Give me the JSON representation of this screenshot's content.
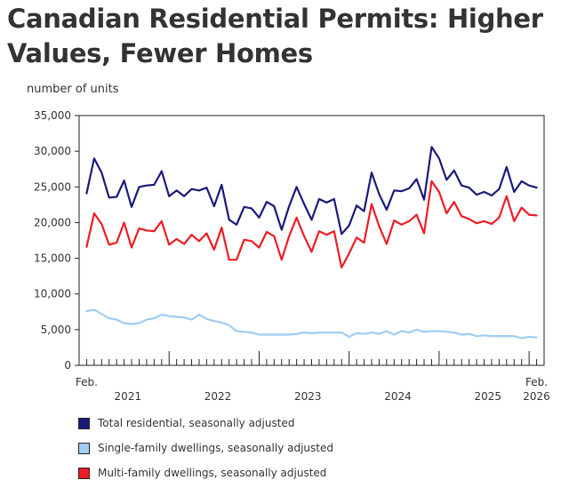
{
  "title": "Canadian Residential Permits: Higher Values, Fewer Homes",
  "chart_data": {
    "type": "line",
    "title": "Canadian Residential Permits: Higher Values, Fewer Homes",
    "ylabel": "number of units",
    "xlabel": "",
    "ylim": [
      0,
      35000
    ],
    "yticks": [
      0,
      5000,
      10000,
      15000,
      20000,
      25000,
      30000,
      35000
    ],
    "ytick_labels": [
      "0",
      "5,000",
      "10,000",
      "15,000",
      "20,000",
      "25,000",
      "30,000",
      "35,000"
    ],
    "x_start_label": "Feb.",
    "x_end_label": "Feb.",
    "year_labels": [
      "2021",
      "2022",
      "2023",
      "2024",
      "2025",
      "2026"
    ],
    "x_start": "2021-02",
    "x_end": "2026-02",
    "series": [
      {
        "name": "Total residential, seasonally adjusted",
        "color": "#1a1a7a",
        "values": [
          24100,
          29000,
          27000,
          23500,
          23600,
          25900,
          22200,
          25000,
          25200,
          25300,
          27200,
          23700,
          24500,
          23700,
          24700,
          24500,
          24900,
          22300,
          25300,
          20400,
          19700,
          22200,
          22000,
          20700,
          22900,
          22300,
          19000,
          22300,
          25000,
          22600,
          20400,
          23300,
          22800,
          23300,
          18400,
          19600,
          22400,
          21600,
          27000,
          24000,
          21800,
          24500,
          24400,
          24800,
          26100,
          23200,
          30600,
          29000,
          26000,
          27300,
          25200,
          24900,
          23900,
          24300,
          23800,
          24700,
          27800,
          24300,
          25800,
          25200,
          24900
        ]
      },
      {
        "name": "Single-family dwellings, seasonally adjusted",
        "color": "#9fcdf3",
        "values": [
          7600,
          7800,
          7200,
          6600,
          6400,
          5900,
          5800,
          5900,
          6400,
          6600,
          7100,
          6900,
          6800,
          6700,
          6400,
          7100,
          6500,
          6200,
          6000,
          5600,
          4800,
          4700,
          4600,
          4300,
          4300,
          4300,
          4300,
          4300,
          4400,
          4600,
          4500,
          4600,
          4600,
          4600,
          4600,
          4000,
          4500,
          4400,
          4600,
          4400,
          4800,
          4300,
          4800,
          4600,
          5000,
          4700,
          4800,
          4800,
          4700,
          4600,
          4300,
          4400,
          4100,
          4200,
          4100,
          4100,
          4100,
          4100,
          3800,
          4000,
          3900
        ]
      },
      {
        "name": "Multi-family dwellings, seasonally adjusted",
        "color": "#ee1c25",
        "values": [
          16600,
          21300,
          19800,
          16900,
          17200,
          20000,
          16500,
          19200,
          18900,
          18800,
          20200,
          16900,
          17700,
          17000,
          18300,
          17400,
          18500,
          16200,
          19300,
          14800,
          14800,
          17600,
          17400,
          16500,
          18700,
          18100,
          14800,
          18100,
          20700,
          18100,
          15900,
          18800,
          18300,
          18800,
          13700,
          15700,
          17900,
          17200,
          22600,
          19500,
          17000,
          20300,
          19700,
          20200,
          21100,
          18500,
          25800,
          24300,
          21300,
          22900,
          20900,
          20500,
          19900,
          20200,
          19800,
          20700,
          23700,
          20200,
          22100,
          21100,
          21000
        ]
      }
    ],
    "legend": "bottom"
  },
  "legend": {
    "items": [
      {
        "label": "Total residential, seasonally adjusted",
        "color": "#1a1a7a"
      },
      {
        "label": "Single-family dwellings, seasonally adjusted",
        "color": "#9fcdf3"
      },
      {
        "label": "Multi-family dwellings, seasonally adjusted",
        "color": "#ee1c25"
      }
    ]
  }
}
